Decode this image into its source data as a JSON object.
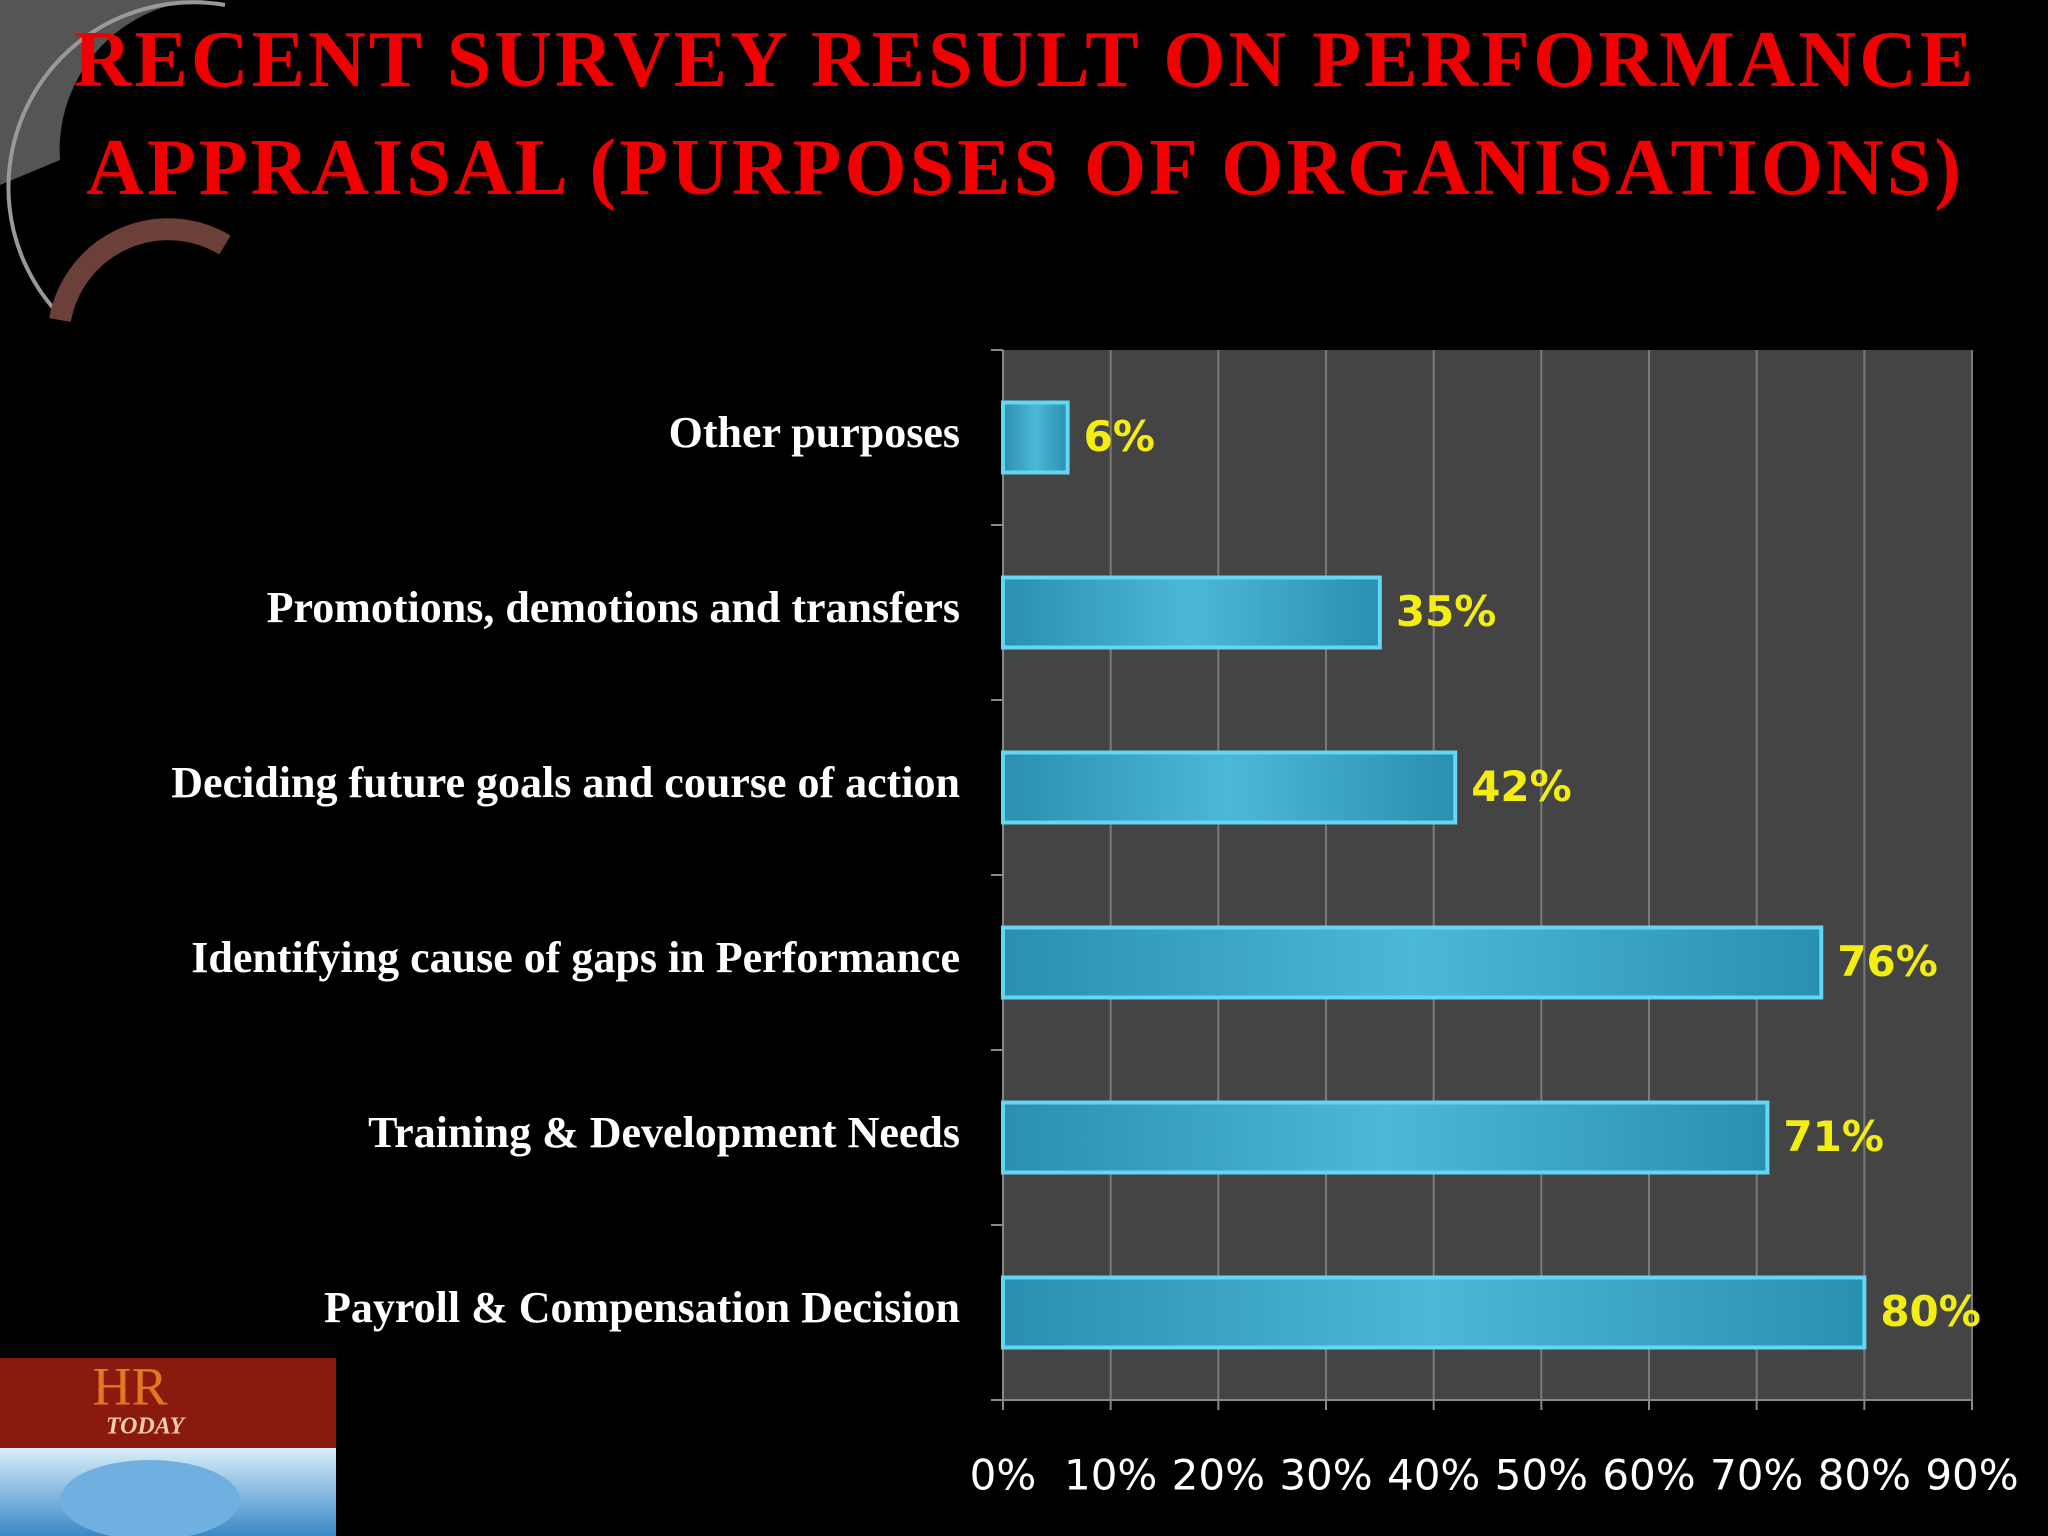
{
  "chart_data": {
    "type": "hbar",
    "title": "RECENT SURVEY RESULT ON PERFORMANCE APPRAISAL (PURPOSES OF ORGANISATIONS)",
    "categories": [
      "Other purposes",
      "Promotions, demotions and transfers",
      "Deciding future goals and course of action",
      "Identifying cause of gaps in Performance",
      "Training & Development Needs",
      "Payroll & Compensation Decision"
    ],
    "values": [
      6,
      35,
      42,
      76,
      71,
      80
    ],
    "value_labels": [
      "6%",
      "35%",
      "42%",
      "76%",
      "71%",
      "80%"
    ],
    "color": "#3aa6c6",
    "xlim": [
      0,
      90
    ],
    "xticks": [
      {
        "value": 0,
        "label": "0%"
      },
      {
        "value": 10,
        "label": "10%"
      },
      {
        "value": 20,
        "label": "20%"
      },
      {
        "value": 30,
        "label": "30%"
      },
      {
        "value": 40,
        "label": "40%"
      },
      {
        "value": 50,
        "label": "50%"
      },
      {
        "value": 60,
        "label": "60%"
      },
      {
        "value": 70,
        "label": "70%"
      },
      {
        "value": 80,
        "label": "80%"
      },
      {
        "value": 90,
        "label": "90%"
      }
    ],
    "grid": true
  },
  "logo": {
    "title": "HR",
    "subtitle": "TODAY"
  }
}
